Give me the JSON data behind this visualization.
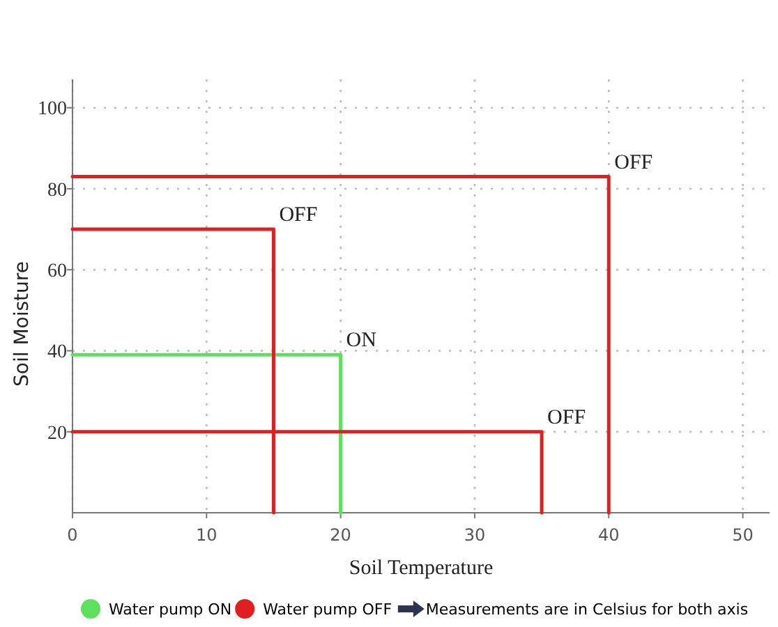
{
  "chart_data": {
    "type": "line",
    "xlabel": "Soil Temperature",
    "ylabel": "Soil Moisture",
    "xlim": [
      0,
      52
    ],
    "ylim": [
      0,
      107
    ],
    "xticks": [
      0,
      10,
      20,
      30,
      40,
      50
    ],
    "yticks": [
      20,
      40,
      60,
      80,
      100
    ],
    "grid": true,
    "legend": "bottom",
    "line_style": "solid",
    "marker": "none",
    "series": [
      {
        "name": "Water pump ON",
        "color": "#5de05d",
        "x": [
          0,
          20,
          20
        ],
        "values": [
          39,
          39,
          0
        ]
      },
      {
        "name": "Water pump OFF",
        "color": "#e02020",
        "x": [
          0,
          40,
          40
        ],
        "values": [
          83,
          83,
          0
        ]
      },
      {
        "color": "#e02020",
        "x": [
          0,
          15,
          15
        ],
        "values": [
          70,
          70,
          0
        ]
      },
      {
        "color": "#e02020",
        "x": [
          0,
          35,
          35
        ],
        "values": [
          20,
          20,
          0
        ]
      }
    ],
    "annotations": [
      {
        "text": "OFF",
        "x": 40,
        "y": 83
      },
      {
        "text": "OFF",
        "x": 15,
        "y": 70
      },
      {
        "text": "ON",
        "x": 20,
        "y": 39
      },
      {
        "text": "OFF",
        "x": 35,
        "y": 20
      },
      "Measurements are in Celsius for both axis"
    ]
  }
}
